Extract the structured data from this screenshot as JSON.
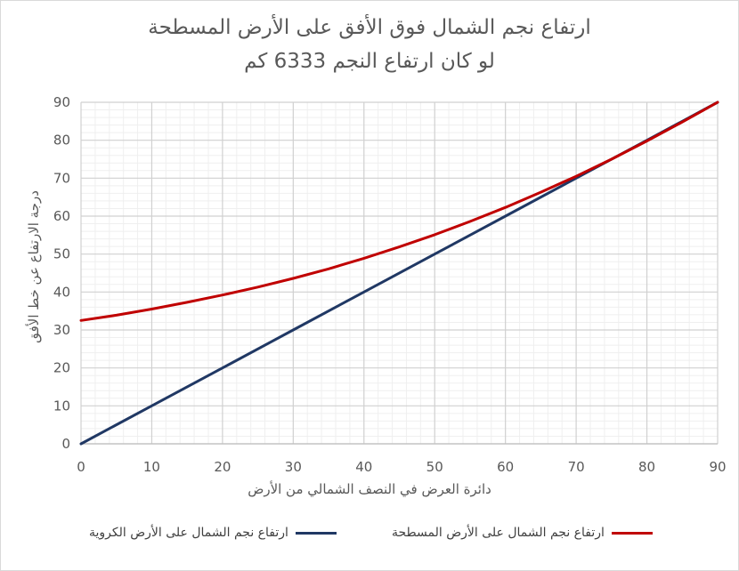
{
  "chart_data": {
    "type": "line",
    "title": "ارتفاع نجم الشمال فوق الأفق على الأرض المسطحة",
    "subtitle": "لو كان ارتفاع النجم 6333 كم",
    "xlabel": "دائرة العرض في النصف الشمالي من الأرض",
    "ylabel": "درجة الارتفاع عن خط الأفق",
    "xlim": [
      0,
      90
    ],
    "ylim": [
      0,
      90
    ],
    "x_ticks": [
      "0",
      "10",
      "20",
      "30",
      "40",
      "50",
      "60",
      "70",
      "80",
      "90"
    ],
    "y_ticks": [
      "0",
      "10",
      "20",
      "30",
      "40",
      "50",
      "60",
      "70",
      "80",
      "90"
    ],
    "grid": "major and minor",
    "legend_position": "bottom",
    "series": [
      {
        "name": "ارتفاع نجم الشمال على الأرض الكروية",
        "color": "#203864",
        "x": [
          0,
          10,
          20,
          30,
          40,
          50,
          60,
          70,
          80,
          90
        ],
        "values": [
          0,
          10,
          20,
          30,
          40,
          50,
          60,
          70,
          80,
          90
        ]
      },
      {
        "name": "ارتفاع نجم الشمال على الأرض المسطحة",
        "color": "#c00000",
        "x": [
          0,
          5,
          10,
          15,
          20,
          25,
          30,
          35,
          40,
          45,
          50,
          55,
          60,
          65,
          70,
          75,
          80,
          85,
          90
        ],
        "values": [
          32.5,
          33.9,
          35.5,
          37.3,
          39.2,
          41.3,
          43.6,
          46.1,
          48.9,
          51.9,
          55.1,
          58.6,
          62.3,
          66.3,
          70.5,
          75.0,
          79.8,
          84.8,
          90.0
        ]
      }
    ]
  }
}
